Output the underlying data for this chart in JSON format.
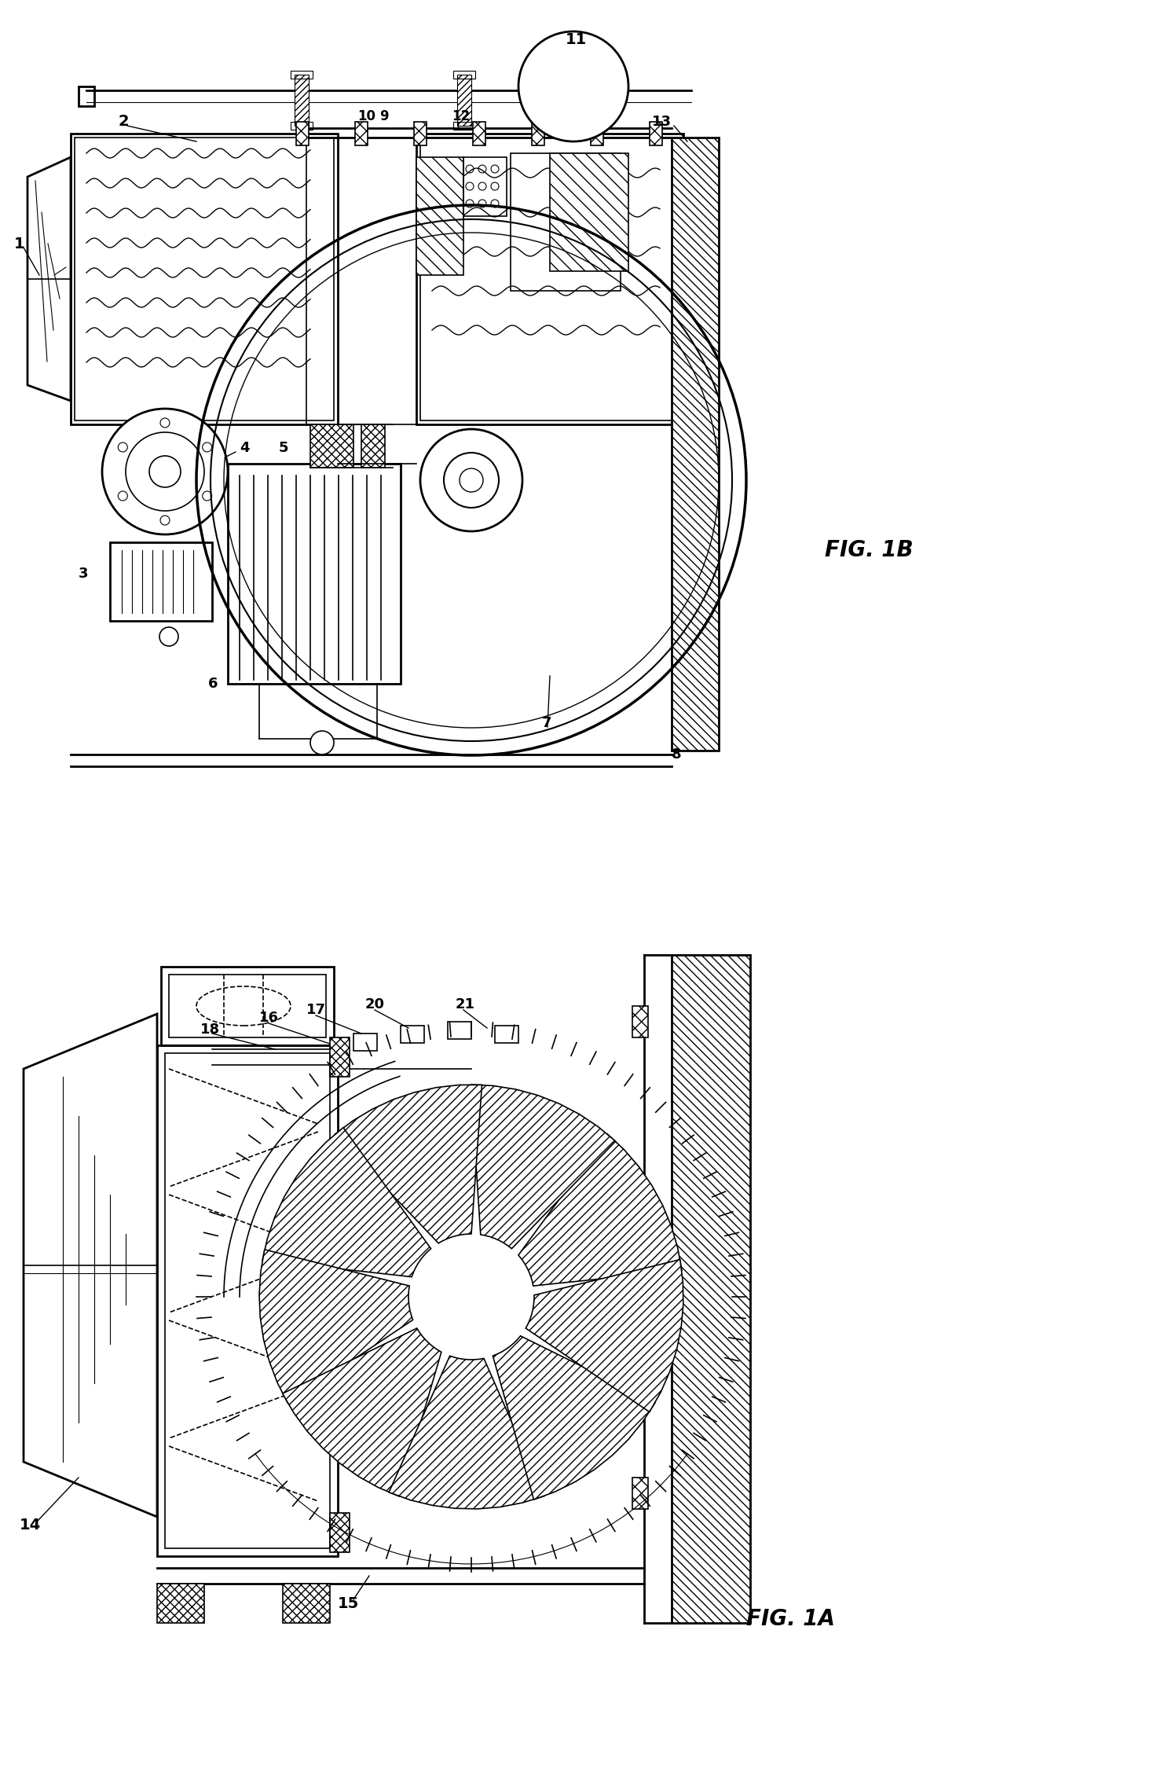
{
  "figsize": [
    14.64,
    22.61
  ],
  "dpi": 100,
  "bg_color": "#ffffff",
  "line_color": "#000000",
  "fig1a_label": "FIG. 1A",
  "fig1b_label": "FIG. 1B",
  "label_fs": 13
}
